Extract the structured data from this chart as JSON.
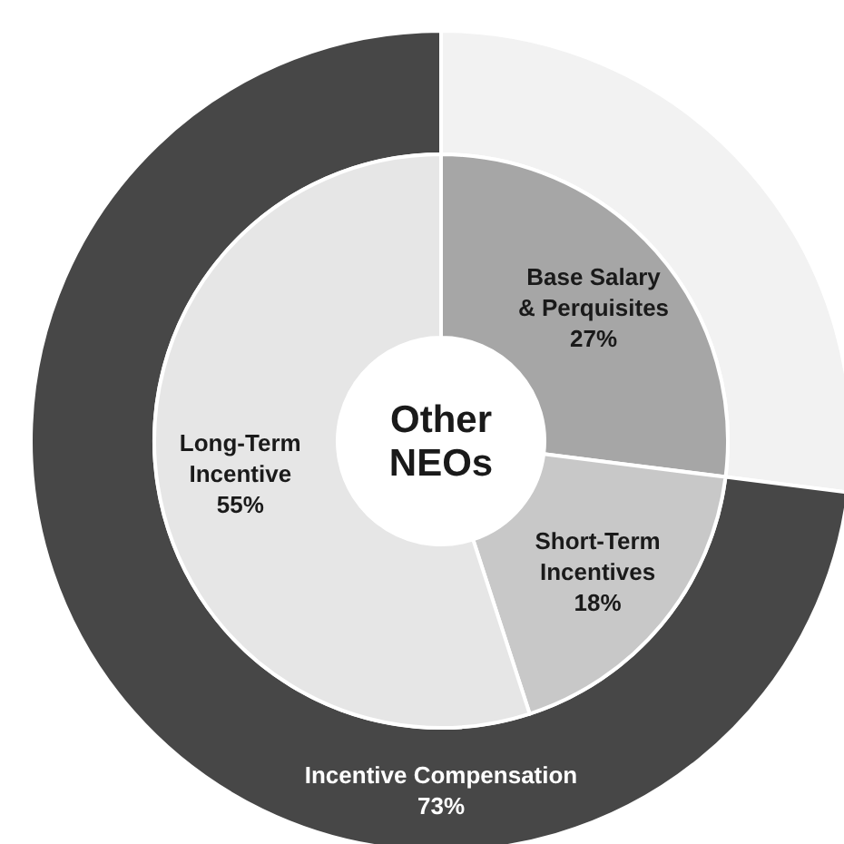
{
  "chart_data": [
    {
      "type": "donut",
      "title": "Other NEOs",
      "categories": [
        "Base Salary & Perquisites",
        "Short-Term Incentives",
        "Long-Term Incentive"
      ],
      "values": [
        27,
        18,
        55
      ],
      "colors": [
        "#a6a6a6",
        "#c8c8c8",
        "#e6e6e6"
      ],
      "value_labels": [
        "27%",
        "18%",
        "55%"
      ]
    },
    {
      "type": "donut",
      "categories": [
        null,
        "Incentive Compensation"
      ],
      "values": [
        27,
        73
      ],
      "colors": [
        "#f2f2f2",
        "#474747"
      ],
      "value_labels": [
        null,
        "73%"
      ]
    }
  ]
}
